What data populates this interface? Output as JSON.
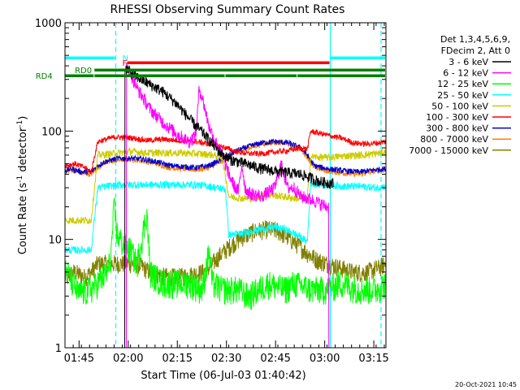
{
  "chart_data": {
    "type": "line",
    "title": "RHESSI Observing Summary Count Rates",
    "xlabel": "Start Time (06-Jul-03 01:40:42)",
    "ylabel_main": "Count Rate (s",
    "ylabel_exp": "-1",
    "ylabel_tail": " detector",
    "ylabel_end": ")",
    "x_unit": "minutes after 01:40:42",
    "xlim": [
      0,
      98
    ],
    "ylim": [
      1,
      1000
    ],
    "yscale": "log",
    "x_ticks": [
      {
        "label": "01:45",
        "value": 4.3
      },
      {
        "label": "02:00",
        "value": 19.3
      },
      {
        "label": "02:15",
        "value": 34.3
      },
      {
        "label": "02:30",
        "value": 49.3
      },
      {
        "label": "02:45",
        "value": 64.3
      },
      {
        "label": "03:00",
        "value": 79.3
      },
      {
        "label": "03:15",
        "value": 94.3
      }
    ],
    "y_ticks": [
      {
        "label": "1",
        "value": 1
      },
      {
        "label": "10",
        "value": 10
      },
      {
        "label": "100",
        "value": 100
      },
      {
        "label": "1000",
        "value": 1000
      }
    ],
    "legend": {
      "header1": "Det 1,3,4,5,6,9,",
      "header2": "FDecim 2, Att 0",
      "position": "right"
    },
    "series": [
      {
        "name": "3 - 6 keV",
        "color": "#000000",
        "noise": 0.06,
        "points": [
          [
            18,
            0
          ],
          [
            18.5,
            380
          ],
          [
            21,
            330
          ],
          [
            25,
            280
          ],
          [
            30,
            230
          ],
          [
            34,
            180
          ],
          [
            38,
            130
          ],
          [
            43,
            90
          ],
          [
            47,
            65
          ],
          [
            50,
            55
          ],
          [
            55,
            50
          ],
          [
            60,
            45
          ],
          [
            66,
            42
          ],
          [
            72,
            40
          ],
          [
            78,
            34
          ],
          [
            82,
            33
          ]
        ]
      },
      {
        "name": "6 - 12 keV",
        "color": "#ff00ff",
        "noise": 0.07,
        "points": [
          [
            18.5,
            0
          ],
          [
            19,
            400
          ],
          [
            22,
            250
          ],
          [
            26,
            160
          ],
          [
            30,
            120
          ],
          [
            34,
            95
          ],
          [
            38,
            80
          ],
          [
            40,
            95
          ],
          [
            41,
            250
          ],
          [
            42,
            200
          ],
          [
            44,
            110
          ],
          [
            46,
            80
          ],
          [
            48,
            60
          ],
          [
            50,
            40
          ],
          [
            52,
            30
          ],
          [
            53,
            28
          ],
          [
            54,
            50
          ],
          [
            55,
            30
          ],
          [
            56,
            27
          ],
          [
            60,
            25
          ],
          [
            64,
            30
          ],
          [
            66,
            50
          ],
          [
            68,
            30
          ],
          [
            70,
            30
          ],
          [
            72,
            25
          ],
          [
            76,
            23
          ],
          [
            80,
            20
          ],
          [
            81,
            0
          ]
        ]
      },
      {
        "name": "12 - 25 keV",
        "color": "#00ff00",
        "noise": 0.15,
        "points": [
          [
            0,
            5.5
          ],
          [
            4,
            3.2
          ],
          [
            8,
            3.5
          ],
          [
            13,
            5
          ],
          [
            14,
            7
          ],
          [
            15,
            20
          ],
          [
            16,
            11
          ],
          [
            18,
            9
          ],
          [
            20,
            8
          ],
          [
            22,
            6
          ],
          [
            25,
            18
          ],
          [
            26,
            5
          ],
          [
            30,
            4
          ],
          [
            38,
            4
          ],
          [
            42,
            3.5
          ],
          [
            44,
            8
          ],
          [
            45,
            4
          ],
          [
            48,
            3.5
          ],
          [
            53,
            3.5
          ],
          [
            56,
            3
          ],
          [
            62,
            4
          ],
          [
            67,
            3.5
          ],
          [
            70,
            4
          ],
          [
            75,
            3.5
          ],
          [
            80,
            3.5
          ],
          [
            84,
            4
          ],
          [
            90,
            3.5
          ],
          [
            95,
            3.5
          ],
          [
            98,
            4
          ]
        ]
      },
      {
        "name": "25 - 50 keV",
        "color": "#00ffff",
        "noise": 0.04,
        "points": [
          [
            0,
            8
          ],
          [
            4,
            8
          ],
          [
            8,
            8
          ],
          [
            10,
            30
          ],
          [
            13,
            31
          ],
          [
            18,
            32
          ],
          [
            25,
            32
          ],
          [
            33,
            32
          ],
          [
            40,
            32
          ],
          [
            44,
            31
          ],
          [
            49,
            29
          ],
          [
            50,
            11
          ],
          [
            55,
            11.5
          ],
          [
            60,
            12.5
          ],
          [
            64,
            13
          ],
          [
            67,
            12.5
          ],
          [
            71,
            11
          ],
          [
            74,
            9.5
          ],
          [
            75,
            33
          ],
          [
            80,
            32
          ],
          [
            85,
            31
          ],
          [
            90,
            31
          ],
          [
            95,
            30
          ],
          [
            98,
            31
          ]
        ]
      },
      {
        "name": "50 - 100 keV",
        "color": "#cccc00",
        "noise": 0.04,
        "points": [
          [
            0,
            15
          ],
          [
            4,
            15
          ],
          [
            8,
            15
          ],
          [
            10,
            60
          ],
          [
            15,
            62
          ],
          [
            20,
            65
          ],
          [
            25,
            63
          ],
          [
            30,
            63
          ],
          [
            35,
            63
          ],
          [
            40,
            62
          ],
          [
            44,
            61
          ],
          [
            48,
            58
          ],
          [
            50,
            25
          ],
          [
            54,
            24
          ],
          [
            58,
            24
          ],
          [
            62,
            26
          ],
          [
            66,
            25
          ],
          [
            70,
            24
          ],
          [
            74,
            24
          ],
          [
            75,
            58
          ],
          [
            80,
            57
          ],
          [
            85,
            59
          ],
          [
            90,
            60
          ],
          [
            95,
            62
          ],
          [
            98,
            64
          ]
        ]
      },
      {
        "name": "100 - 300 keV",
        "color": "#ff0000",
        "noise": 0.03,
        "points": [
          [
            0,
            48
          ],
          [
            3,
            50
          ],
          [
            6,
            46
          ],
          [
            8,
            42
          ],
          [
            10,
            80
          ],
          [
            15,
            88
          ],
          [
            20,
            87
          ],
          [
            25,
            82
          ],
          [
            30,
            84
          ],
          [
            35,
            82
          ],
          [
            40,
            80
          ],
          [
            44,
            76
          ],
          [
            48,
            72
          ],
          [
            52,
            65
          ],
          [
            56,
            62
          ],
          [
            60,
            62
          ],
          [
            64,
            64
          ],
          [
            68,
            66
          ],
          [
            72,
            70
          ],
          [
            74,
            68
          ],
          [
            75,
            100
          ],
          [
            80,
            92
          ],
          [
            85,
            85
          ],
          [
            88,
            78
          ],
          [
            92,
            76
          ],
          [
            96,
            78
          ],
          [
            98,
            80
          ]
        ]
      },
      {
        "name": "300 - 800 keV",
        "color": "#0000cc",
        "noise": 0.03,
        "points": [
          [
            0,
            43
          ],
          [
            2,
            45
          ],
          [
            5,
            42
          ],
          [
            8,
            42
          ],
          [
            10,
            48
          ],
          [
            12,
            52
          ],
          [
            16,
            56
          ],
          [
            20,
            56
          ],
          [
            24,
            55
          ],
          [
            28,
            52
          ],
          [
            32,
            48
          ],
          [
            36,
            47
          ],
          [
            40,
            46
          ],
          [
            44,
            48
          ],
          [
            48,
            55
          ],
          [
            52,
            65
          ],
          [
            56,
            72
          ],
          [
            60,
            78
          ],
          [
            64,
            80
          ],
          [
            68,
            78
          ],
          [
            72,
            70
          ],
          [
            74,
            60
          ],
          [
            76,
            48
          ],
          [
            80,
            45
          ],
          [
            85,
            43
          ],
          [
            90,
            42
          ],
          [
            95,
            44
          ],
          [
            98,
            45
          ]
        ]
      },
      {
        "name": "800 - 7000 keV",
        "color": "#ff8000",
        "noise": 0.03,
        "points": [
          [
            0,
            42
          ],
          [
            2,
            44
          ],
          [
            5,
            41
          ],
          [
            8,
            40
          ],
          [
            10,
            46
          ],
          [
            12,
            51
          ],
          [
            16,
            54
          ],
          [
            20,
            55
          ],
          [
            24,
            53
          ],
          [
            28,
            50
          ],
          [
            32,
            46
          ],
          [
            36,
            45
          ],
          [
            40,
            44
          ],
          [
            44,
            46
          ],
          [
            48,
            53
          ],
          [
            52,
            63
          ],
          [
            56,
            70
          ],
          [
            60,
            76
          ],
          [
            64,
            79
          ],
          [
            68,
            77
          ],
          [
            72,
            68
          ],
          [
            74,
            58
          ],
          [
            76,
            46
          ],
          [
            80,
            43
          ],
          [
            85,
            41
          ],
          [
            90,
            40
          ],
          [
            95,
            43
          ],
          [
            98,
            44
          ]
        ]
      },
      {
        "name": "7000 - 15000 keV",
        "color": "#808000",
        "noise": 0.1,
        "points": [
          [
            0,
            4.5
          ],
          [
            3,
            5
          ],
          [
            6,
            4.5
          ],
          [
            8,
            5
          ],
          [
            10,
            6
          ],
          [
            14,
            6
          ],
          [
            18,
            6
          ],
          [
            22,
            6
          ],
          [
            26,
            5
          ],
          [
            30,
            4.6
          ],
          [
            34,
            4.5
          ],
          [
            38,
            4.7
          ],
          [
            42,
            5
          ],
          [
            44,
            5.5
          ],
          [
            46,
            6.5
          ],
          [
            48,
            7.5
          ],
          [
            51,
            9
          ],
          [
            54,
            10.5
          ],
          [
            58,
            12
          ],
          [
            62,
            12.5
          ],
          [
            65,
            12
          ],
          [
            68,
            10.5
          ],
          [
            71,
            9
          ],
          [
            74,
            7.5
          ],
          [
            77,
            6.5
          ],
          [
            80,
            6
          ],
          [
            84,
            5.5
          ],
          [
            88,
            5
          ],
          [
            92,
            5
          ],
          [
            96,
            5.5
          ],
          [
            98,
            6
          ]
        ]
      }
    ],
    "state_bars": [
      {
        "label": "N",
        "color": "#00ffff",
        "level": 43,
        "segments": [
          [
            0,
            15.5
          ],
          [
            81,
            98
          ]
        ],
        "label_x": 17.5,
        "label_color": "#00ffff"
      },
      {
        "label": "F",
        "color": "#ff0000",
        "level": 49,
        "segments": [
          [
            19,
            81
          ]
        ],
        "label_x": 17.5,
        "label_color": "#ff0000"
      },
      {
        "label": "RD0",
        "color": "#008000",
        "level": 58,
        "segments": [
          [
            9,
            98
          ]
        ],
        "label_x": 3,
        "label_color": "#008000"
      },
      {
        "label": "RD4",
        "color": "#008000",
        "level": 65,
        "segments": [
          [
            0,
            9
          ],
          [
            9,
            49
          ],
          [
            49,
            71
          ],
          [
            71,
            98
          ]
        ],
        "label_x": -9,
        "label_color": "#008000"
      }
    ],
    "vertical_markers": [
      {
        "x": 15.5,
        "style": "dashed",
        "color": "#00ffff"
      },
      {
        "x": 81,
        "style": "solid",
        "color": "#00ffff"
      },
      {
        "x": 96.5,
        "style": "dashed",
        "color": "#00ffff"
      }
    ]
  },
  "footer": {
    "timestamp": "20-Oct-2021 10:45"
  }
}
